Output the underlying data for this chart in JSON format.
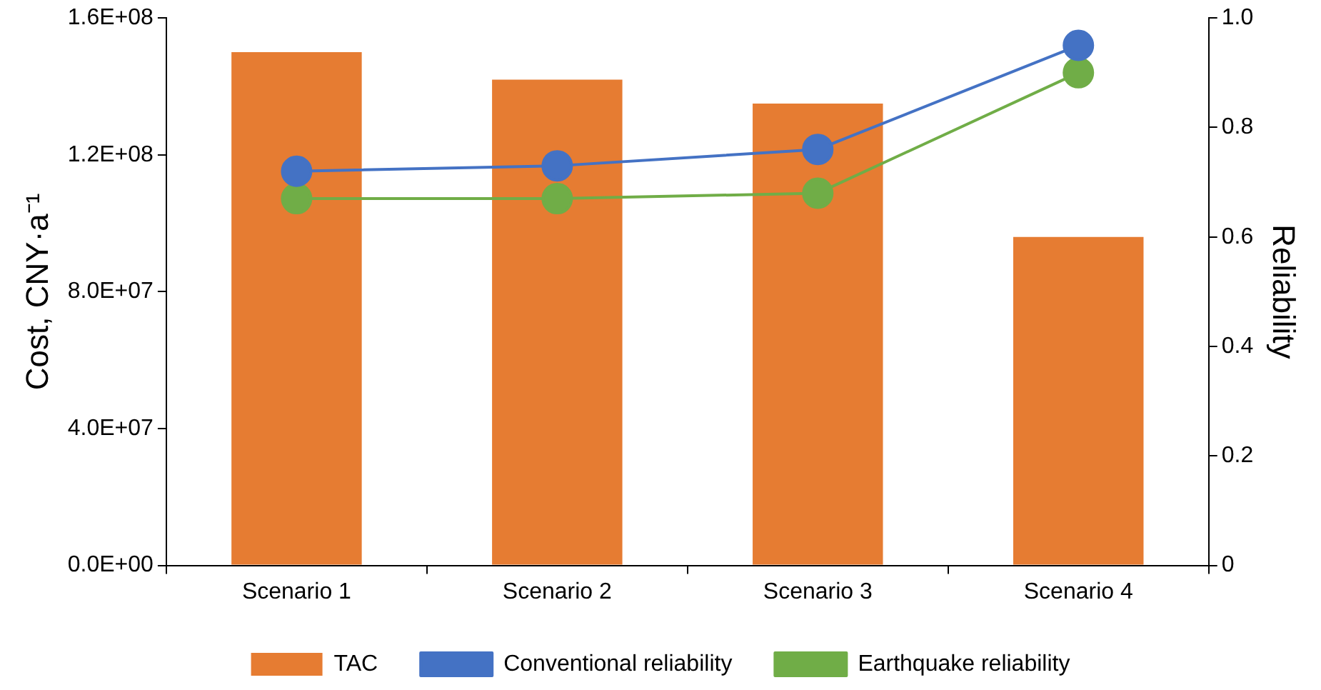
{
  "chart_data": {
    "type": "bar",
    "categories": [
      "Scenario 1",
      "Scenario 2",
      "Scenario 3",
      "Scenario 4"
    ],
    "ylabel": "Cost, CNY·a⁻¹",
    "y2label": "Reliability",
    "series": [
      {
        "name": "TAC",
        "color": "#e67c32",
        "values": [
          150000000.0,
          142000000.0,
          135000000.0,
          96000000.0
        ]
      },
      {
        "name": "Conventional reliability",
        "type": "line",
        "axis": "y2",
        "color": "#4472c4",
        "values": [
          0.72,
          0.73,
          0.76,
          0.95
        ]
      },
      {
        "name": "Earthquake reliability",
        "type": "line",
        "axis": "y2",
        "color": "#70ad47",
        "values": [
          0.67,
          0.67,
          0.68,
          0.9
        ]
      }
    ],
    "ylim": [
      0,
      160000000.0
    ],
    "yticks": [
      {
        "value": 0,
        "label": "0.0E+00"
      },
      {
        "value": 40000000.0,
        "label": "4.0E+07"
      },
      {
        "value": 80000000.0,
        "label": "8.0E+07"
      },
      {
        "value": 120000000.0,
        "label": "1.2E+08"
      },
      {
        "value": 160000000.0,
        "label": "1.6E+08"
      }
    ],
    "y2lim": [
      0,
      1
    ],
    "y2ticks": [
      0,
      0.2,
      0.4,
      0.6,
      0.8,
      {
        "value": 1,
        "label": "1.0"
      }
    ],
    "grid": false,
    "legend": "bottom",
    "marker": "circle"
  }
}
